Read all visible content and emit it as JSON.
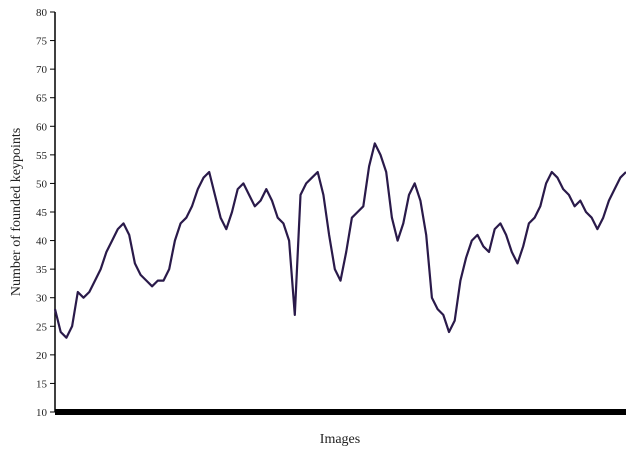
{
  "chart_data": {
    "type": "line",
    "title": "",
    "xlabel": "Images",
    "ylabel": "Number of founded keypoints",
    "ylim": [
      10,
      80
    ],
    "yticks": [
      10,
      15,
      20,
      25,
      30,
      35,
      40,
      45,
      50,
      55,
      60,
      65,
      70,
      75,
      80
    ],
    "xlim": [
      0,
      100
    ],
    "grid": false,
    "legend": "none",
    "colors": {
      "line": "#2a1a4a",
      "axis": "#000000",
      "baseline": "#000000"
    },
    "series": [
      {
        "x": [
          0,
          1,
          2,
          3,
          4,
          5,
          6,
          7,
          8,
          9,
          10,
          11,
          12,
          13,
          14,
          15,
          16,
          17,
          18,
          19,
          20,
          21,
          22,
          23,
          24,
          25,
          26,
          27,
          28,
          29,
          30,
          31,
          32,
          33,
          34,
          35,
          36,
          37,
          38,
          39,
          40,
          41,
          42,
          43,
          44,
          45,
          46,
          47,
          48,
          49,
          50,
          51,
          52,
          53,
          54,
          55,
          56,
          57,
          58,
          59,
          60,
          61,
          62,
          63,
          64,
          65,
          66,
          67,
          68,
          69,
          70,
          71,
          72,
          73,
          74,
          75,
          76,
          77,
          78,
          79,
          80,
          81,
          82,
          83,
          84,
          85,
          86,
          87,
          88,
          89,
          90,
          91,
          92,
          93,
          94,
          95,
          96,
          97,
          98,
          99,
          100
        ],
        "values": [
          28,
          24,
          23,
          25,
          31,
          30,
          31,
          33,
          35,
          38,
          40,
          42,
          43,
          41,
          36,
          34,
          33,
          32,
          33,
          33,
          35,
          40,
          43,
          44,
          46,
          49,
          51,
          52,
          48,
          44,
          42,
          45,
          49,
          50,
          48,
          46,
          47,
          49,
          47,
          44,
          43,
          40,
          27,
          48,
          50,
          51,
          52,
          48,
          41,
          35,
          33,
          38,
          44,
          45,
          46,
          53,
          57,
          55,
          52,
          44,
          40,
          43,
          48,
          50,
          47,
          41,
          30,
          28,
          27,
          24,
          26,
          33,
          37,
          40,
          41,
          39,
          38,
          42,
          43,
          41,
          38,
          36,
          39,
          43,
          44,
          46,
          50,
          52,
          51,
          49,
          48,
          46,
          47,
          45,
          44,
          42,
          44,
          47,
          49,
          51,
          52
        ]
      }
    ]
  }
}
